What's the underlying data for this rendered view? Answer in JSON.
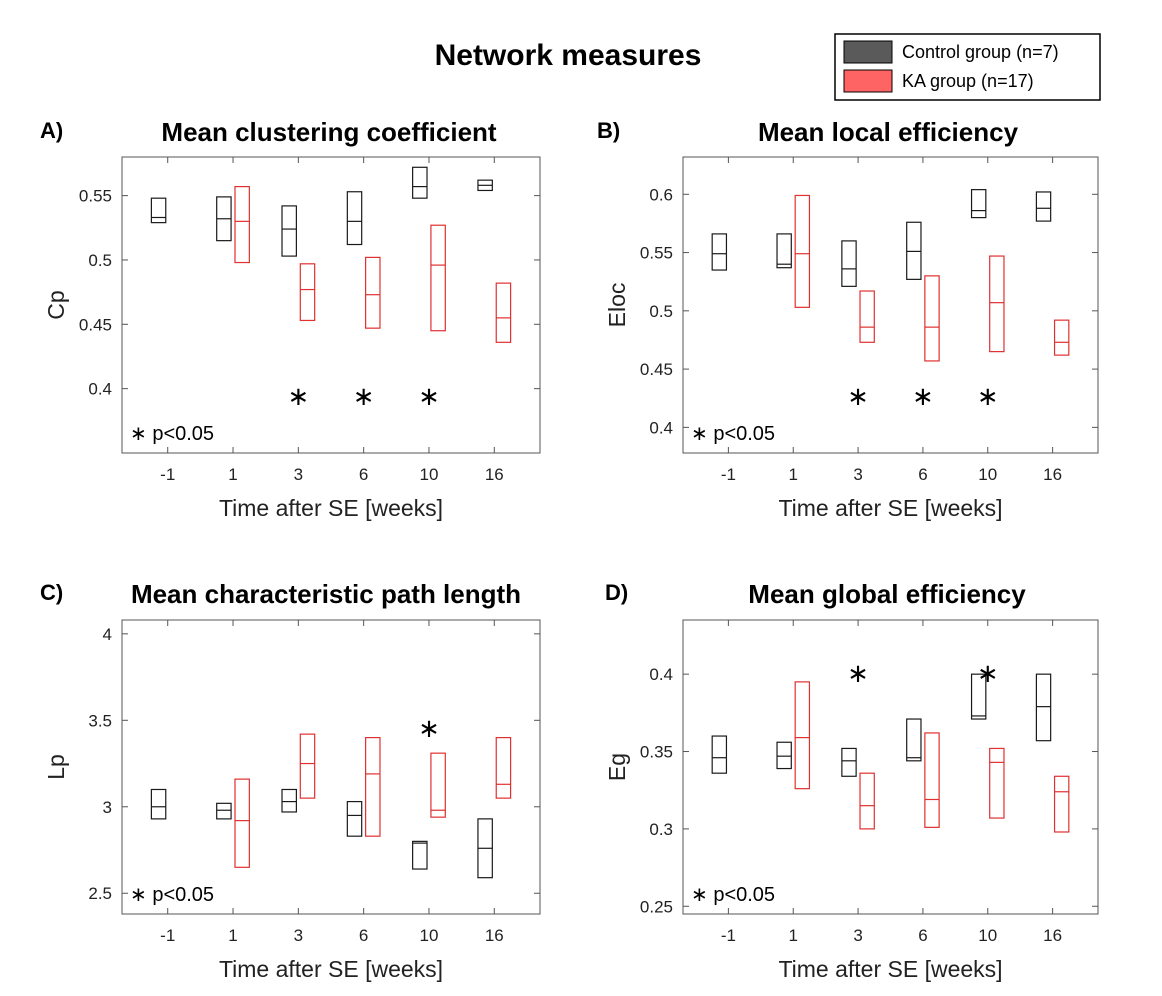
{
  "figure": {
    "title": "Network measures",
    "legend": [
      {
        "label": "Control group (n=7)",
        "fill": "#5a5a5a",
        "stroke": "#000000"
      },
      {
        "label": "KA group (n=17)",
        "fill": "#ff6464",
        "stroke": "#000000"
      }
    ],
    "colors": {
      "control": "#1a1a1a",
      "ka": "#e03030",
      "axis": "#555555"
    }
  },
  "chart_data": [
    {
      "type": "box",
      "panel": "A)",
      "title": "Mean clustering coefficient",
      "xlabel": "Time after SE [weeks]",
      "ylabel": "Cp",
      "categories": [
        "-1",
        "1",
        "3",
        "6",
        "10",
        "16"
      ],
      "ylim": [
        0.35,
        0.58
      ],
      "yticks": [
        "0.4",
        "0.45",
        "0.5",
        "0.55"
      ],
      "ytick_values": [
        0.4,
        0.45,
        0.5,
        0.55
      ],
      "significance_note": "∗ p<0.05",
      "significance_stars": [
        "2",
        "3",
        "4"
      ],
      "series": [
        {
          "name": "Control group (n=7)",
          "boxes": [
            {
              "q1": 0.529,
              "median": 0.533,
              "q3": 0.548
            },
            {
              "q1": 0.515,
              "median": 0.532,
              "q3": 0.549
            },
            {
              "q1": 0.503,
              "median": 0.524,
              "q3": 0.542
            },
            {
              "q1": 0.512,
              "median": 0.53,
              "q3": 0.553
            },
            {
              "q1": 0.548,
              "median": 0.557,
              "q3": 0.572
            },
            {
              "q1": 0.554,
              "median": 0.558,
              "q3": 0.562
            }
          ]
        },
        {
          "name": "KA group (n=17)",
          "boxes": [
            null,
            {
              "q1": 0.498,
              "median": 0.53,
              "q3": 0.557
            },
            {
              "q1": 0.453,
              "median": 0.477,
              "q3": 0.497
            },
            {
              "q1": 0.447,
              "median": 0.473,
              "q3": 0.502
            },
            {
              "q1": 0.445,
              "median": 0.496,
              "q3": 0.527
            },
            {
              "q1": 0.436,
              "median": 0.455,
              "q3": 0.482
            }
          ]
        }
      ]
    },
    {
      "type": "box",
      "panel": "B)",
      "title": "Mean local efficiency",
      "xlabel": "Time after SE [weeks]",
      "ylabel": "Eloc",
      "categories": [
        "-1",
        "1",
        "3",
        "6",
        "10",
        "16"
      ],
      "ylim": [
        0.378,
        0.632
      ],
      "yticks": [
        "0.4",
        "0.45",
        "0.5",
        "0.55",
        "0.6"
      ],
      "ytick_values": [
        0.4,
        0.45,
        0.5,
        0.55,
        0.6
      ],
      "significance_note": "∗ p<0.05",
      "significance_stars": [
        "2",
        "3",
        "4"
      ],
      "series": [
        {
          "name": "Control group (n=7)",
          "boxes": [
            {
              "q1": 0.535,
              "median": 0.549,
              "q3": 0.566
            },
            {
              "q1": 0.537,
              "median": 0.54,
              "q3": 0.566
            },
            {
              "q1": 0.521,
              "median": 0.536,
              "q3": 0.56
            },
            {
              "q1": 0.527,
              "median": 0.551,
              "q3": 0.576
            },
            {
              "q1": 0.58,
              "median": 0.586,
              "q3": 0.604
            },
            {
              "q1": 0.577,
              "median": 0.588,
              "q3": 0.602
            }
          ]
        },
        {
          "name": "KA group (n=17)",
          "boxes": [
            null,
            {
              "q1": 0.503,
              "median": 0.549,
              "q3": 0.599
            },
            {
              "q1": 0.473,
              "median": 0.486,
              "q3": 0.517
            },
            {
              "q1": 0.457,
              "median": 0.486,
              "q3": 0.53
            },
            {
              "q1": 0.465,
              "median": 0.507,
              "q3": 0.547
            },
            {
              "q1": 0.462,
              "median": 0.473,
              "q3": 0.492
            }
          ]
        }
      ]
    },
    {
      "type": "box",
      "panel": "C)",
      "title": "Mean characteristic path length",
      "xlabel": "Time after SE [weeks]",
      "ylabel": "Lp",
      "categories": [
        "-1",
        "1",
        "3",
        "6",
        "10",
        "16"
      ],
      "ylim": [
        2.38,
        4.08
      ],
      "yticks": [
        "2.5",
        "3",
        "3.5",
        "4"
      ],
      "ytick_values": [
        2.5,
        3.0,
        3.5,
        4.0
      ],
      "significance_note": "∗ p<0.05",
      "significance_stars": [
        "4"
      ],
      "star_above": true,
      "series": [
        {
          "name": "Control group (n=7)",
          "boxes": [
            {
              "q1": 2.93,
              "median": 3.0,
              "q3": 3.1
            },
            {
              "q1": 2.93,
              "median": 2.98,
              "q3": 3.02
            },
            {
              "q1": 2.97,
              "median": 3.03,
              "q3": 3.1
            },
            {
              "q1": 2.83,
              "median": 2.95,
              "q3": 3.03
            },
            {
              "q1": 2.64,
              "median": 2.79,
              "q3": 2.8
            },
            {
              "q1": 2.59,
              "median": 2.76,
              "q3": 2.93
            }
          ]
        },
        {
          "name": "KA group (n=17)",
          "boxes": [
            null,
            {
              "q1": 2.65,
              "median": 2.92,
              "q3": 3.16
            },
            {
              "q1": 3.05,
              "median": 3.25,
              "q3": 3.42
            },
            {
              "q1": 2.83,
              "median": 3.19,
              "q3": 3.4
            },
            {
              "q1": 2.94,
              "median": 2.98,
              "q3": 3.31
            },
            {
              "q1": 3.05,
              "median": 3.13,
              "q3": 3.4
            }
          ]
        }
      ]
    },
    {
      "type": "box",
      "panel": "D)",
      "title": "Mean global efficiency",
      "xlabel": "Time after SE [weeks]",
      "ylabel": "Eg",
      "categories": [
        "-1",
        "1",
        "3",
        "6",
        "10",
        "16"
      ],
      "ylim": [
        0.245,
        0.435
      ],
      "yticks": [
        "0.25",
        "0.3",
        "0.35",
        "0.4"
      ],
      "ytick_values": [
        0.25,
        0.3,
        0.35,
        0.4
      ],
      "significance_note": "∗ p<0.05",
      "significance_stars": [
        "2",
        "4"
      ],
      "star_above": true,
      "series": [
        {
          "name": "Control group (n=7)",
          "boxes": [
            {
              "q1": 0.336,
              "median": 0.346,
              "q3": 0.36
            },
            {
              "q1": 0.339,
              "median": 0.347,
              "q3": 0.356
            },
            {
              "q1": 0.334,
              "median": 0.344,
              "q3": 0.352
            },
            {
              "q1": 0.344,
              "median": 0.346,
              "q3": 0.371
            },
            {
              "q1": 0.371,
              "median": 0.373,
              "q3": 0.4
            },
            {
              "q1": 0.357,
              "median": 0.379,
              "q3": 0.4
            }
          ]
        },
        {
          "name": "KA group (n=17)",
          "boxes": [
            null,
            {
              "q1": 0.326,
              "median": 0.359,
              "q3": 0.395
            },
            {
              "q1": 0.3,
              "median": 0.315,
              "q3": 0.336
            },
            {
              "q1": 0.301,
              "median": 0.319,
              "q3": 0.362
            },
            {
              "q1": 0.307,
              "median": 0.343,
              "q3": 0.352
            },
            {
              "q1": 0.298,
              "median": 0.324,
              "q3": 0.334
            }
          ]
        }
      ]
    }
  ]
}
